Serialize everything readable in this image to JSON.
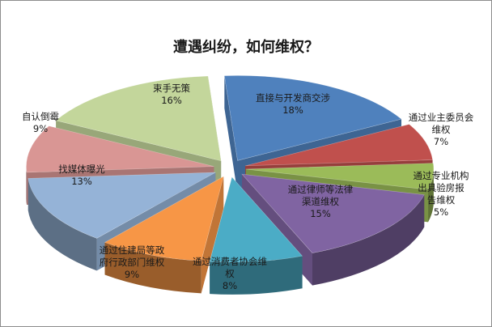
{
  "chart_data": {
    "type": "pie",
    "title": "遭遇纠纷，如何维权？",
    "style": "3d-exploded",
    "slices": [
      {
        "label": "直接与开发商交涉",
        "percent": 18,
        "percent_label": "18%",
        "color": "#4f81bd"
      },
      {
        "label": "通过业主委员会维权",
        "percent": 7,
        "percent_label": "7%",
        "color": "#c0504d"
      },
      {
        "label": "通过专业机构出具验房报告维权",
        "percent": 5,
        "percent_label": "5%",
        "color": "#9bbb59"
      },
      {
        "label": "通过律师等法律渠道维权",
        "percent": 15,
        "percent_label": "15%",
        "color": "#8064a2"
      },
      {
        "label": "通过消费者协会维权",
        "percent": 8,
        "percent_label": "8%",
        "color": "#4bacc6"
      },
      {
        "label": "通过住建局等政府行政部门维权",
        "percent": 9,
        "percent_label": "9%",
        "color": "#f79646"
      },
      {
        "label": "找媒体曝光",
        "percent": 13,
        "percent_label": "13%",
        "color": "#95b3d7"
      },
      {
        "label": "自认倒霉",
        "percent": 9,
        "percent_label": "9%",
        "color": "#d99694"
      },
      {
        "label": "束手无策",
        "percent": 16,
        "percent_label": "16%",
        "color": "#c3d69b"
      }
    ]
  }
}
